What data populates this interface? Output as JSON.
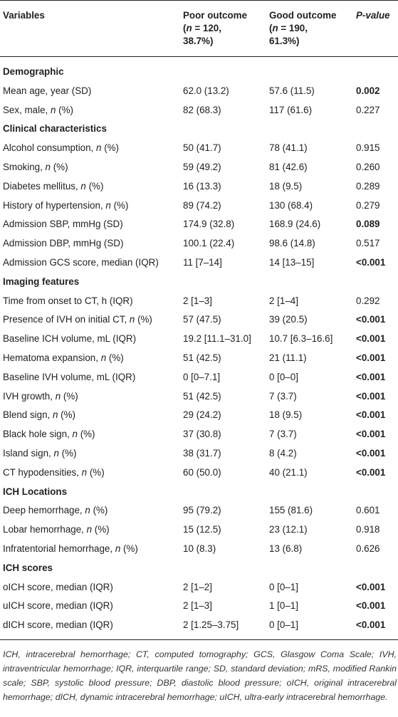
{
  "header": {
    "variables": "Variables",
    "poor_line1": "Poor outcome",
    "poor_line2": "(n = 120,",
    "poor_line3": "38.7%)",
    "good_line1": "Good outcome",
    "good_line2": "(n = 190,",
    "good_line3": "61.3%)",
    "pvalue": "P-value"
  },
  "rows": [
    {
      "type": "section",
      "label": "Demographic"
    },
    {
      "type": "data",
      "label": "Mean age, year (SD)",
      "poor": "62.0 (13.2)",
      "good": "57.6 (11.5)",
      "p": "0.002",
      "sig": true
    },
    {
      "type": "data",
      "label": "Sex, male, n (%)",
      "poor": "82 (68.3)",
      "good": "117 (61.6)",
      "p": "0.227",
      "sig": false
    },
    {
      "type": "section",
      "label": "Clinical characteristics"
    },
    {
      "type": "data",
      "label": "Alcohol consumption, n (%)",
      "poor": "50 (41.7)",
      "good": "78 (41.1)",
      "p": "0.915",
      "sig": false
    },
    {
      "type": "data",
      "label": "Smoking, n (%)",
      "poor": "59 (49.2)",
      "good": "81 (42.6)",
      "p": "0.260",
      "sig": false
    },
    {
      "type": "data",
      "label": "Diabetes mellitus, n (%)",
      "poor": "16 (13.3)",
      "good": "18 (9.5)",
      "p": "0.289",
      "sig": false
    },
    {
      "type": "data",
      "label": "History of hypertension, n (%)",
      "poor": "89 (74.2)",
      "good": "130 (68.4)",
      "p": "0.279",
      "sig": false
    },
    {
      "type": "data",
      "label": "Admission SBP, mmHg (SD)",
      "poor": "174.9 (32.8)",
      "good": "168.9 (24.6)",
      "p": "0.089",
      "sig": true
    },
    {
      "type": "data",
      "label": "Admission DBP, mmHg (SD)",
      "poor": "100.1 (22.4)",
      "good": "98.6 (14.8)",
      "p": "0.517",
      "sig": false
    },
    {
      "type": "data",
      "label": "Admission GCS score, median (IQR)",
      "poor": "11 [7–14]",
      "good": "14 [13–15]",
      "p": "<0.001",
      "sig": true
    },
    {
      "type": "section",
      "label": "Imaging features"
    },
    {
      "type": "data",
      "label": "Time from onset to CT, h (IQR)",
      "poor": "2 [1–3]",
      "good": "2 [1–4]",
      "p": "0.292",
      "sig": false
    },
    {
      "type": "data",
      "label": "Presence of IVH on initial CT, n (%)",
      "poor": "57 (47.5)",
      "good": "39 (20.5)",
      "p": "<0.001",
      "sig": true
    },
    {
      "type": "data",
      "label": "Baseline ICH volume, mL (IQR)",
      "poor": "19.2 [11.1–31.0]",
      "good": "10.7 [6.3–16.6]",
      "p": "<0.001",
      "sig": true
    },
    {
      "type": "data",
      "label": "Hematoma expansion, n (%)",
      "poor": "51 (42.5)",
      "good": "21 (11.1)",
      "p": "<0.001",
      "sig": true
    },
    {
      "type": "data",
      "label": "Baseline IVH volume, mL (IQR)",
      "poor": "0 [0–7.1]",
      "good": "0 [0–0]",
      "p": "<0.001",
      "sig": true
    },
    {
      "type": "data",
      "label": "IVH growth, n (%)",
      "poor": "51 (42.5)",
      "good": "7 (3.7)",
      "p": "<0.001",
      "sig": true
    },
    {
      "type": "data",
      "label": "Blend sign, n (%)",
      "poor": "29 (24.2)",
      "good": "18 (9.5)",
      "p": "<0.001",
      "sig": true
    },
    {
      "type": "data",
      "label": "Black hole sign, n (%)",
      "poor": "37 (30.8)",
      "good": "7 (3.7)",
      "p": "<0.001",
      "sig": true
    },
    {
      "type": "data",
      "label": "Island sign, n (%)",
      "poor": "38 (31.7)",
      "good": "8 (4.2)",
      "p": "<0.001",
      "sig": true
    },
    {
      "type": "data",
      "label": "CT hypodensities, n (%)",
      "poor": "60 (50.0)",
      "good": "40 (21.1)",
      "p": "<0.001",
      "sig": true
    },
    {
      "type": "section",
      "label": "ICH Locations"
    },
    {
      "type": "data",
      "label": "Deep hemorrhage, n (%)",
      "poor": "95 (79.2)",
      "good": "155 (81.6)",
      "p": "0.601",
      "sig": false
    },
    {
      "type": "data",
      "label": "Lobar hemorrhage, n (%)",
      "poor": "15 (12.5)",
      "good": "23 (12.1)",
      "p": "0.918",
      "sig": false
    },
    {
      "type": "data",
      "label": "Infratentorial hemorrhage, n (%)",
      "poor": "10 (8.3)",
      "good": "13 (6.8)",
      "p": "0.626",
      "sig": false
    },
    {
      "type": "section",
      "label": "ICH scores"
    },
    {
      "type": "data",
      "label": "oICH score, median (IQR)",
      "poor": "2 [1–2]",
      "good": "0 [0–1]",
      "p": "<0.001",
      "sig": true
    },
    {
      "type": "data",
      "label": "uICH score, median (IQR)",
      "poor": "2 [1–3]",
      "good": "1 [0–1]",
      "p": "<0.001",
      "sig": true
    },
    {
      "type": "data",
      "label": "dICH score, median (IQR)",
      "poor": "2 [1.25–3.75]",
      "good": "0 [0–1]",
      "p": "<0.001",
      "sig": true
    }
  ],
  "footnote": "ICH, intracerebral hemorrhage; CT, computed tomography; GCS, Glasgow Coma Scale; IVH, intraventricular hemorrhage; IQR, interquartile range; SD, standard deviation; mRS, modified Rankin scale; SBP, systolic blood pressure; DBP, diastolic blood pressure; oICH, original intracerebral hemorrhage; dICH, dynamic intracerebral hemorrhage; uICH, ultra-early intracerebral hemorrhage."
}
